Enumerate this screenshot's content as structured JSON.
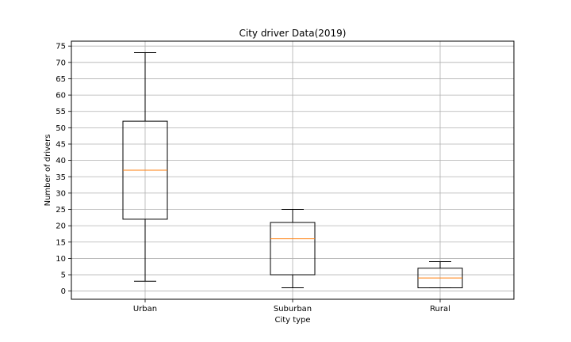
{
  "chart_data": {
    "type": "box",
    "title": "City driver Data(2019)",
    "xlabel": "City type",
    "ylabel": "Number of drivers",
    "ylim": [
      -2.5,
      76.5
    ],
    "yticks": [
      0,
      5,
      10,
      15,
      20,
      25,
      30,
      35,
      40,
      45,
      50,
      55,
      60,
      65,
      70,
      75
    ],
    "grid": true,
    "categories": [
      "Urban",
      "Suburban",
      "Rural"
    ],
    "boxes": [
      {
        "category": "Urban",
        "whisker_low": 3,
        "q1": 22,
        "median": 37,
        "q3": 52,
        "whisker_high": 73
      },
      {
        "category": "Suburban",
        "whisker_low": 1,
        "q1": 5,
        "median": 16,
        "q3": 21,
        "whisker_high": 25
      },
      {
        "category": "Rural",
        "whisker_low": 1,
        "q1": 1,
        "median": 4,
        "q3": 7,
        "whisker_high": 9
      }
    ],
    "colors": {
      "box": "#000000",
      "median": "#ff7f0e",
      "grid": "#b0b0b0"
    }
  }
}
